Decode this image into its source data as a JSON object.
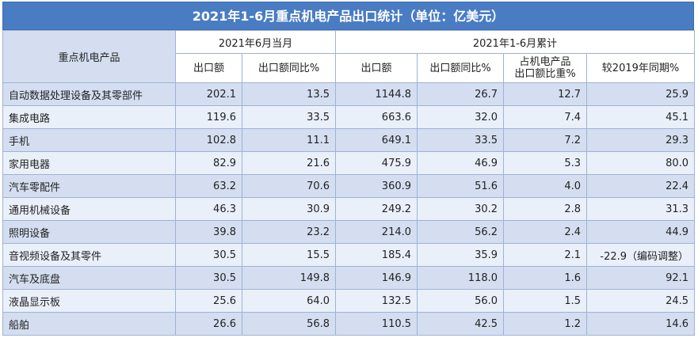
{
  "title": "2021年1-6月重点机电产品出口统计（单位：亿美元）",
  "headers": {
    "product": "重点机电产品",
    "group_june": "2021年6月当月",
    "group_ytd": "2021年1-6月累计",
    "june_export": "出口额",
    "june_yoy": "出口额同比%",
    "ytd_export": "出口额",
    "ytd_yoy": "出口额同比%",
    "share_line1": "占机电产品",
    "share_line2": "出口额比重%",
    "vs2019": "较2019年同期%"
  },
  "rows": [
    {
      "name": "自动数据处理设备及其零部件",
      "june_export": "202.1",
      "june_yoy": "13.5",
      "ytd_export": "1144.8",
      "ytd_yoy": "26.7",
      "share": "12.7",
      "vs2019": "25.9"
    },
    {
      "name": "集成电路",
      "june_export": "119.6",
      "june_yoy": "33.5",
      "ytd_export": "663.6",
      "ytd_yoy": "32.0",
      "share": "7.4",
      "vs2019": "45.1"
    },
    {
      "name": "手机",
      "june_export": "102.8",
      "june_yoy": "11.1",
      "ytd_export": "649.1",
      "ytd_yoy": "33.5",
      "share": "7.2",
      "vs2019": "29.3"
    },
    {
      "name": "家用电器",
      "june_export": "82.9",
      "june_yoy": "21.6",
      "ytd_export": "475.9",
      "ytd_yoy": "46.9",
      "share": "5.3",
      "vs2019": "80.0"
    },
    {
      "name": "汽车零配件",
      "june_export": "63.2",
      "june_yoy": "70.6",
      "ytd_export": "360.9",
      "ytd_yoy": "51.6",
      "share": "4.0",
      "vs2019": "22.4"
    },
    {
      "name": "通用机械设备",
      "june_export": "46.3",
      "june_yoy": "30.9",
      "ytd_export": "249.2",
      "ytd_yoy": "30.2",
      "share": "2.8",
      "vs2019": "31.3"
    },
    {
      "name": "照明设备",
      "june_export": "39.8",
      "june_yoy": "23.2",
      "ytd_export": "214.0",
      "ytd_yoy": "56.2",
      "share": "2.4",
      "vs2019": "44.9"
    },
    {
      "name": "音视频设备及其零件",
      "june_export": "30.5",
      "june_yoy": "15.5",
      "ytd_export": "185.4",
      "ytd_yoy": "35.9",
      "share": "2.1",
      "vs2019": "-22.9（编码调整）"
    },
    {
      "name": "汽车及底盘",
      "june_export": "30.5",
      "june_yoy": "149.8",
      "ytd_export": "146.9",
      "ytd_yoy": "118.0",
      "share": "1.6",
      "vs2019": "92.1"
    },
    {
      "name": "液晶显示板",
      "june_export": "25.6",
      "june_yoy": "64.0",
      "ytd_export": "132.5",
      "ytd_yoy": "56.0",
      "share": "1.5",
      "vs2019": "24.5"
    },
    {
      "name": "船舶",
      "june_export": "26.6",
      "june_yoy": "56.8",
      "ytd_export": "110.5",
      "ytd_yoy": "42.5",
      "share": "1.2",
      "vs2019": "14.6"
    }
  ]
}
